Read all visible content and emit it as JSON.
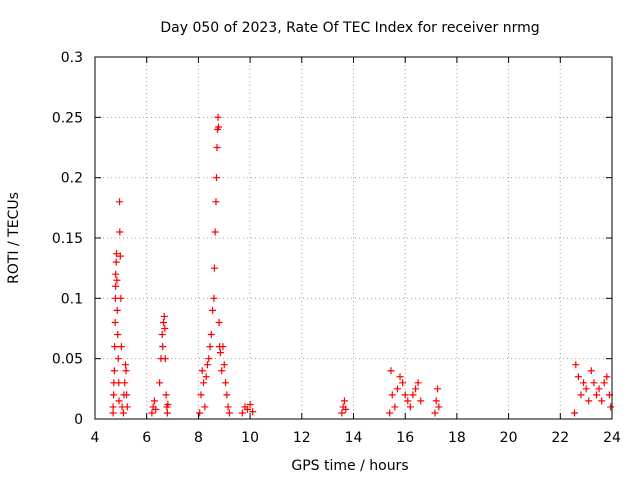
{
  "chart_data": {
    "type": "scatter",
    "title": "Day 050 of 2023, Rate Of TEC Index for receiver nrmg",
    "xlabel": "GPS time / hours",
    "ylabel": "ROTI / TECUs",
    "xlim": [
      4,
      24
    ],
    "ylim": [
      0,
      0.3
    ],
    "xticks": [
      "4",
      "6",
      "8",
      "10",
      "12",
      "14",
      "16",
      "18",
      "20",
      "22",
      "24"
    ],
    "yticks": [
      "0",
      "0.05",
      "0.1",
      "0.15",
      "0.2",
      "0.25",
      "0.3"
    ],
    "grid": true,
    "marker": "+",
    "color": "#ff0000",
    "series": [
      {
        "name": "ROTI",
        "points": [
          [
            4.7,
            0.005
          ],
          [
            4.7,
            0.01
          ],
          [
            4.72,
            0.02
          ],
          [
            4.73,
            0.03
          ],
          [
            4.75,
            0.04
          ],
          [
            4.76,
            0.06
          ],
          [
            4.78,
            0.08
          ],
          [
            4.79,
            0.1
          ],
          [
            4.8,
            0.11
          ],
          [
            4.8,
            0.12
          ],
          [
            4.82,
            0.13
          ],
          [
            4.83,
            0.137
          ],
          [
            4.85,
            0.115
          ],
          [
            4.86,
            0.09
          ],
          [
            4.88,
            0.07
          ],
          [
            4.9,
            0.05
          ],
          [
            4.92,
            0.03
          ],
          [
            4.93,
            0.015
          ],
          [
            4.95,
            0.18
          ],
          [
            4.96,
            0.155
          ],
          [
            4.98,
            0.135
          ],
          [
            5.0,
            0.1
          ],
          [
            5.02,
            0.06
          ],
          [
            5.05,
            0.01
          ],
          [
            5.1,
            0.005
          ],
          [
            5.12,
            0.02
          ],
          [
            5.15,
            0.03
          ],
          [
            5.18,
            0.045
          ],
          [
            5.2,
            0.04
          ],
          [
            5.22,
            0.02
          ],
          [
            5.25,
            0.01
          ],
          [
            6.2,
            0.005
          ],
          [
            6.25,
            0.01
          ],
          [
            6.3,
            0.015
          ],
          [
            6.35,
            0.008
          ],
          [
            6.5,
            0.03
          ],
          [
            6.55,
            0.05
          ],
          [
            6.6,
            0.07
          ],
          [
            6.62,
            0.06
          ],
          [
            6.65,
            0.08
          ],
          [
            6.68,
            0.085
          ],
          [
            6.7,
            0.075
          ],
          [
            6.72,
            0.05
          ],
          [
            6.75,
            0.02
          ],
          [
            6.78,
            0.01
          ],
          [
            6.8,
            0.005
          ],
          [
            6.82,
            0.012
          ],
          [
            8.05,
            0.005
          ],
          [
            8.1,
            0.02
          ],
          [
            8.15,
            0.04
          ],
          [
            8.2,
            0.03
          ],
          [
            8.25,
            0.01
          ],
          [
            8.3,
            0.035
          ],
          [
            8.35,
            0.045
          ],
          [
            8.4,
            0.05
          ],
          [
            8.45,
            0.06
          ],
          [
            8.5,
            0.07
          ],
          [
            8.55,
            0.09
          ],
          [
            8.6,
            0.1
          ],
          [
            8.62,
            0.125
          ],
          [
            8.65,
            0.155
          ],
          [
            8.68,
            0.18
          ],
          [
            8.7,
            0.2
          ],
          [
            8.72,
            0.225
          ],
          [
            8.74,
            0.24
          ],
          [
            8.76,
            0.25
          ],
          [
            8.78,
            0.242
          ],
          [
            8.8,
            0.08
          ],
          [
            8.82,
            0.06
          ],
          [
            8.85,
            0.055
          ],
          [
            8.9,
            0.04
          ],
          [
            8.95,
            0.06
          ],
          [
            9.0,
            0.045
          ],
          [
            9.05,
            0.03
          ],
          [
            9.1,
            0.02
          ],
          [
            9.15,
            0.01
          ],
          [
            9.2,
            0.005
          ],
          [
            9.7,
            0.005
          ],
          [
            9.8,
            0.01
          ],
          [
            9.9,
            0.008
          ],
          [
            10.0,
            0.012
          ],
          [
            10.1,
            0.006
          ],
          [
            13.55,
            0.005
          ],
          [
            13.6,
            0.01
          ],
          [
            13.65,
            0.015
          ],
          [
            13.7,
            0.008
          ],
          [
            15.4,
            0.005
          ],
          [
            15.45,
            0.04
          ],
          [
            15.5,
            0.02
          ],
          [
            15.6,
            0.01
          ],
          [
            15.7,
            0.025
          ],
          [
            15.8,
            0.035
          ],
          [
            15.9,
            0.03
          ],
          [
            16.0,
            0.02
          ],
          [
            16.1,
            0.015
          ],
          [
            16.2,
            0.01
          ],
          [
            16.3,
            0.02
          ],
          [
            16.4,
            0.025
          ],
          [
            16.5,
            0.03
          ],
          [
            16.6,
            0.015
          ],
          [
            17.15,
            0.005
          ],
          [
            17.2,
            0.015
          ],
          [
            17.25,
            0.025
          ],
          [
            17.3,
            0.01
          ],
          [
            22.55,
            0.005
          ],
          [
            22.6,
            0.045
          ],
          [
            22.7,
            0.035
          ],
          [
            22.8,
            0.02
          ],
          [
            22.9,
            0.03
          ],
          [
            23.0,
            0.025
          ],
          [
            23.1,
            0.015
          ],
          [
            23.2,
            0.04
          ],
          [
            23.3,
            0.03
          ],
          [
            23.4,
            0.02
          ],
          [
            23.5,
            0.025
          ],
          [
            23.6,
            0.015
          ],
          [
            23.7,
            0.03
          ],
          [
            23.8,
            0.035
          ],
          [
            23.9,
            0.02
          ],
          [
            23.95,
            0.01
          ]
        ]
      }
    ]
  }
}
